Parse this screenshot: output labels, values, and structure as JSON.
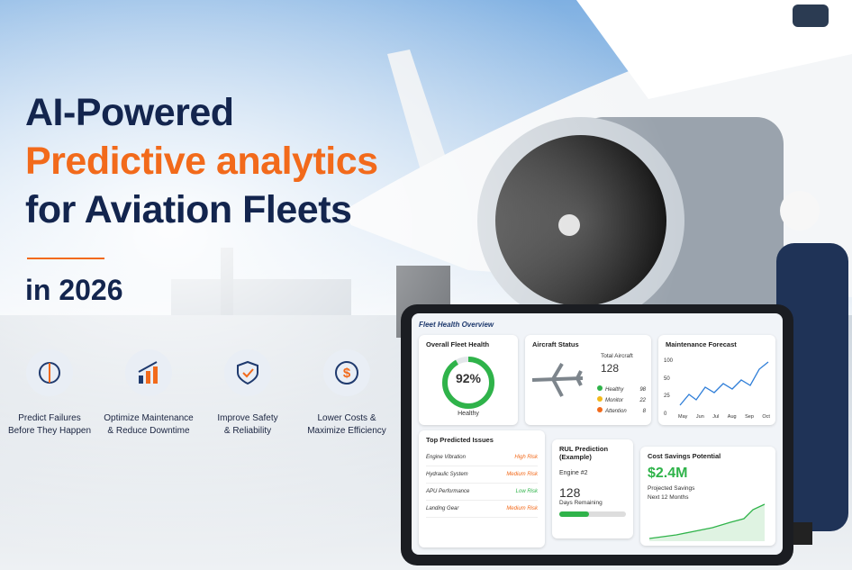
{
  "headline": {
    "line1": "AI-Powered",
    "line2": "Predictive analytics",
    "line3": "for Aviation Fleets",
    "year_line": "in 2026"
  },
  "features": [
    {
      "line1": "Predict Failures",
      "line2": "Before They Happen"
    },
    {
      "line1": "Optimize Maintenance",
      "line2": "& Reduce Downtime"
    },
    {
      "line1": "Improve Safety",
      "line2": "& Reliability"
    },
    {
      "line1": "Lower Costs &",
      "line2": "Maximize Efficiency"
    }
  ],
  "dashboard": {
    "title": "Fleet Health Overview",
    "fleet_health": {
      "title": "Overall Fleet Health",
      "value": "92%",
      "status": "Healthy"
    },
    "aircraft_status": {
      "title": "Aircraft Status",
      "total_label": "Total Aircraft",
      "total": "128",
      "legend": [
        {
          "label": "Healthy",
          "count": "98"
        },
        {
          "label": "Monitor",
          "count": "22"
        },
        {
          "label": "Attention",
          "count": "8"
        }
      ]
    },
    "maintenance_forecast": {
      "title": "Maintenance Forecast",
      "yticks": [
        "100",
        "50",
        "25",
        "0"
      ],
      "months": [
        "May",
        "Jun",
        "Jul",
        "Aug",
        "Sep",
        "Oct"
      ]
    },
    "top_issues": {
      "title": "Top Predicted Issues",
      "rows": [
        {
          "issue": "Engine Vibration",
          "risk": "High Risk"
        },
        {
          "issue": "Hydraulic System",
          "risk": "Medium Risk"
        },
        {
          "issue": "APU Performance",
          "risk": "Low Risk"
        },
        {
          "issue": "Landing Gear",
          "risk": "Medium Risk"
        }
      ]
    },
    "rul": {
      "title": "RUL Prediction (Example)",
      "engine": "Engine #2",
      "value": "128",
      "unit": "Days Remaining"
    },
    "cost": {
      "title": "Cost Savings Potential",
      "value": "$2.4M",
      "line1": "Projected Savings",
      "line2": "Next 12 Months"
    }
  }
}
